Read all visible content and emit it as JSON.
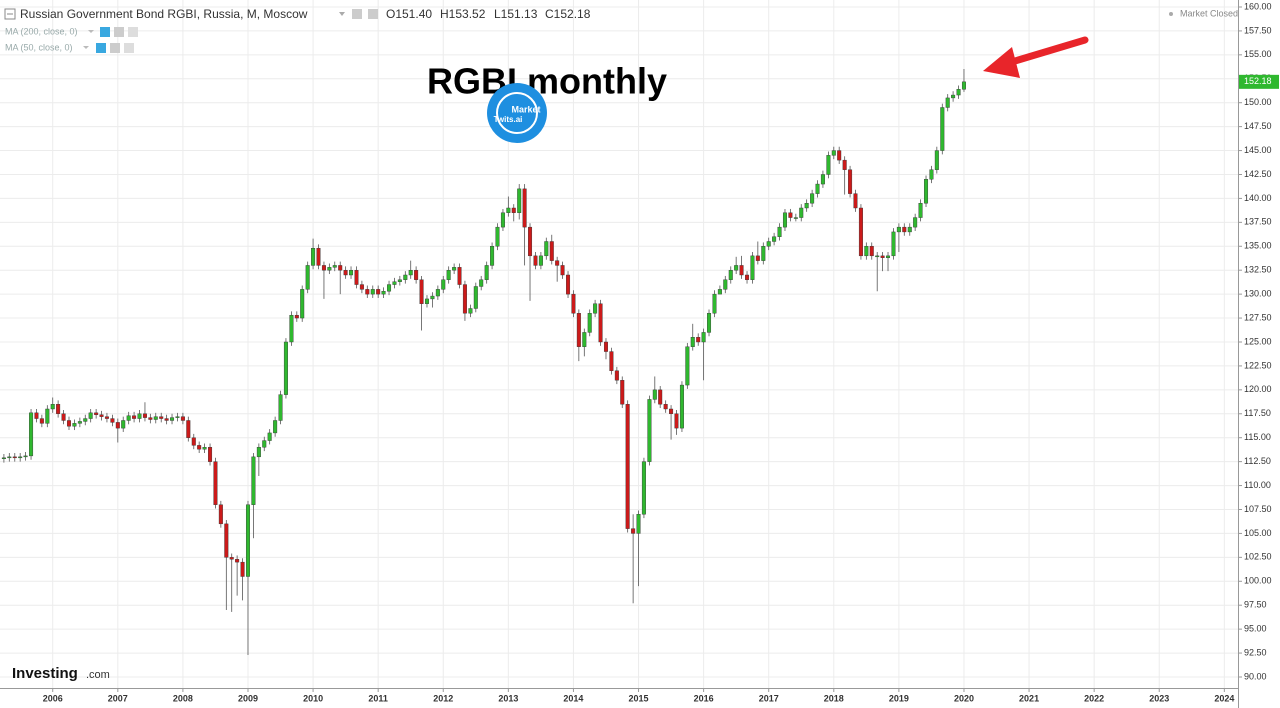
{
  "chart_data": {
    "type": "candlestick",
    "title": "Russian Government Bond RGBI, Russia, M, Moscow",
    "quote": [
      "O151.40",
      "H153.52",
      "L151.13",
      "C152.18"
    ],
    "indicators": [
      "MA (200, close, 0)",
      "MA (50, close, 0)"
    ],
    "status": "Market Closed",
    "annotation": "RGBI monthly",
    "watermark": [
      "Market",
      "Twits.ai"
    ],
    "brand": [
      "Investing",
      ".com"
    ],
    "last_label": "152.18",
    "up_color": "#2fb82f",
    "down_color": "#cc1a1a",
    "grid": true,
    "xlim": [
      2005.19,
      2024.21
    ],
    "ylim": [
      88.85,
      160.73
    ],
    "xticks": [
      2006,
      2007,
      2008,
      2009,
      2010,
      2011,
      2012,
      2013,
      2014,
      2015,
      2016,
      2017,
      2018,
      2019,
      2020,
      2021,
      2022,
      2023,
      2024
    ],
    "yticks": [
      {
        "value": 90,
        "label": "90.00"
      },
      {
        "value": 92.5,
        "label": "92.50"
      },
      {
        "value": 95,
        "label": "95.00"
      },
      {
        "value": 97.5,
        "label": "97.50"
      },
      {
        "value": 100,
        "label": "100.00"
      },
      {
        "value": 102.5,
        "label": "102.50"
      },
      {
        "value": 105,
        "label": "105.00"
      },
      {
        "value": 107.5,
        "label": "107.50"
      },
      {
        "value": 110,
        "label": "110.00"
      },
      {
        "value": 112.5,
        "label": "112.50"
      },
      {
        "value": 115,
        "label": "115.00"
      },
      {
        "value": 117.5,
        "label": "117.50"
      },
      {
        "value": 120,
        "label": "120.00"
      },
      {
        "value": 122.5,
        "label": "122.50"
      },
      {
        "value": 125,
        "label": "125.00"
      },
      {
        "value": 127.5,
        "label": "127.50"
      },
      {
        "value": 130,
        "label": "130.00"
      },
      {
        "value": 132.5,
        "label": "132.50"
      },
      {
        "value": 135,
        "label": "135.00"
      },
      {
        "value": 137.5,
        "label": "137.50"
      },
      {
        "value": 140,
        "label": "140.00"
      },
      {
        "value": 142.5,
        "label": "142.50"
      },
      {
        "value": 145,
        "label": "145.00"
      },
      {
        "value": 147.5,
        "label": "147.50"
      },
      {
        "value": 150,
        "label": "150.00"
      },
      {
        "value": 152.5,
        "label": "152.50"
      },
      {
        "value": 155,
        "label": "155.00"
      },
      {
        "value": 157.5,
        "label": "157.50"
      },
      {
        "value": 160,
        "label": "160.00"
      }
    ],
    "x": [
      2005.25,
      2005.333,
      2005.417,
      2005.5,
      2005.583,
      2005.667,
      2005.75,
      2005.833,
      2005.917,
      2006,
      2006.083,
      2006.167,
      2006.25,
      2006.333,
      2006.417,
      2006.5,
      2006.583,
      2006.667,
      2006.75,
      2006.833,
      2006.917,
      2007,
      2007.083,
      2007.167,
      2007.25,
      2007.333,
      2007.417,
      2007.5,
      2007.583,
      2007.667,
      2007.75,
      2007.833,
      2007.917,
      2008,
      2008.083,
      2008.167,
      2008.25,
      2008.333,
      2008.417,
      2008.5,
      2008.583,
      2008.667,
      2008.75,
      2008.833,
      2008.917,
      2009,
      2009.083,
      2009.167,
      2009.25,
      2009.333,
      2009.417,
      2009.5,
      2009.583,
      2009.667,
      2009.75,
      2009.833,
      2009.917,
      2010,
      2010.083,
      2010.167,
      2010.25,
      2010.333,
      2010.417,
      2010.5,
      2010.583,
      2010.667,
      2010.75,
      2010.833,
      2010.917,
      2011,
      2011.083,
      2011.167,
      2011.25,
      2011.333,
      2011.417,
      2011.5,
      2011.583,
      2011.667,
      2011.75,
      2011.833,
      2011.917,
      2012,
      2012.083,
      2012.167,
      2012.25,
      2012.333,
      2012.417,
      2012.5,
      2012.583,
      2012.667,
      2012.75,
      2012.833,
      2012.917,
      2013,
      2013.083,
      2013.167,
      2013.25,
      2013.333,
      2013.417,
      2013.5,
      2013.583,
      2013.667,
      2013.75,
      2013.833,
      2013.917,
      2014,
      2014.083,
      2014.167,
      2014.25,
      2014.333,
      2014.417,
      2014.5,
      2014.583,
      2014.667,
      2014.75,
      2014.833,
      2014.917,
      2015,
      2015.083,
      2015.167,
      2015.25,
      2015.333,
      2015.417,
      2015.5,
      2015.583,
      2015.667,
      2015.75,
      2015.833,
      2015.917,
      2016,
      2016.083,
      2016.167,
      2016.25,
      2016.333,
      2016.417,
      2016.5,
      2016.583,
      2016.667,
      2016.75,
      2016.833,
      2016.917,
      2017,
      2017.083,
      2017.167,
      2017.25,
      2017.333,
      2017.417,
      2017.5,
      2017.583,
      2017.667,
      2017.75,
      2017.833,
      2017.917,
      2018,
      2018.083,
      2018.167,
      2018.25,
      2018.333,
      2018.417,
      2018.5,
      2018.583,
      2018.667,
      2018.75,
      2018.833,
      2018.917,
      2019,
      2019.083,
      2019.167,
      2019.25,
      2019.333,
      2019.417,
      2019.5,
      2019.583,
      2019.667,
      2019.75,
      2019.833,
      2019.917,
      2020
    ],
    "open": [
      112.8,
      112.9,
      113.0,
      112.9,
      113.0,
      113.1,
      117.6,
      117.0,
      116.5,
      118.0,
      118.5,
      117.5,
      116.8,
      116.2,
      116.5,
      116.7,
      117.0,
      117.6,
      117.4,
      117.2,
      117.0,
      116.6,
      116.0,
      116.8,
      117.3,
      117.0,
      117.5,
      117.1,
      116.9,
      117.2,
      117.0,
      116.8,
      117.1,
      117.2,
      116.8,
      115.0,
      114.2,
      113.8,
      114.0,
      112.5,
      108.0,
      106.0,
      102.5,
      102.3,
      102.0,
      100.5,
      108.0,
      113.0,
      114.0,
      114.7,
      115.5,
      116.8,
      119.5,
      125.0,
      127.8,
      127.5,
      130.5,
      133.0,
      134.8,
      133.0,
      132.5,
      132.8,
      133.0,
      132.5,
      132.0,
      132.5,
      131.0,
      130.5,
      130.0,
      130.5,
      130.0,
      130.3,
      131.0,
      131.3,
      131.5,
      132.0,
      132.5,
      131.5,
      129.0,
      129.5,
      129.8,
      130.5,
      131.5,
      132.5,
      132.8,
      131.0,
      128.0,
      128.5,
      130.8,
      131.5,
      133.0,
      135.0,
      137.0,
      138.5,
      139.0,
      138.5,
      141.0,
      137.0,
      134.0,
      133.0,
      134.0,
      135.5,
      133.5,
      133.0,
      132.0,
      130.0,
      128.0,
      124.5,
      126.0,
      128.0,
      129.0,
      125.0,
      124.0,
      122.0,
      121.0,
      118.5,
      105.5,
      105.0,
      107.0,
      112.5,
      119.0,
      120.0,
      118.5,
      118.0,
      117.5,
      116.0,
      120.5,
      124.5,
      125.5,
      125.0,
      126.0,
      128.0,
      130.0,
      130.5,
      131.5,
      132.5,
      133.0,
      132.0,
      131.5,
      134.0,
      133.5,
      135.0,
      135.5,
      136.0,
      137.0,
      138.5,
      138.0,
      138.0,
      139.0,
      139.5,
      140.5,
      141.5,
      142.5,
      144.5,
      145.0,
      144.0,
      143.0,
      140.5,
      139.0,
      134.0,
      135.0,
      134.0,
      134.0,
      133.8,
      134.0,
      136.5,
      137.0,
      136.5,
      137.0,
      138.0,
      139.5,
      142.0,
      143.0,
      145.0,
      149.5,
      150.5,
      150.8,
      151.4
    ],
    "high": [
      113.3,
      113.4,
      113.4,
      113.4,
      113.5,
      118.0,
      118.0,
      117.4,
      118.4,
      119.2,
      118.9,
      117.9,
      117.2,
      116.9,
      117.1,
      117.4,
      118.0,
      118.0,
      117.8,
      117.6,
      117.4,
      117.0,
      117.2,
      117.7,
      117.7,
      117.9,
      118.7,
      117.5,
      117.6,
      117.6,
      117.4,
      117.5,
      117.6,
      117.6,
      117.2,
      115.4,
      114.6,
      114.4,
      114.4,
      112.9,
      108.4,
      106.4,
      102.9,
      102.7,
      102.4,
      108.4,
      113.4,
      114.4,
      115.1,
      115.9,
      117.2,
      119.9,
      125.4,
      128.2,
      128.2,
      130.9,
      133.4,
      135.8,
      135.2,
      133.4,
      133.2,
      133.4,
      133.4,
      132.9,
      132.9,
      132.9,
      131.4,
      130.9,
      130.9,
      130.9,
      130.7,
      131.4,
      131.7,
      131.9,
      132.4,
      133.5,
      132.9,
      131.9,
      129.9,
      130.2,
      130.9,
      131.9,
      132.9,
      133.2,
      133.2,
      131.4,
      128.9,
      131.2,
      131.9,
      133.4,
      135.4,
      137.4,
      138.9,
      140.2,
      139.4,
      141.5,
      141.5,
      137.4,
      134.4,
      134.4,
      135.9,
      136.2,
      133.9,
      133.4,
      132.4,
      130.4,
      128.4,
      126.4,
      128.4,
      129.4,
      129.4,
      125.4,
      124.4,
      122.4,
      121.4,
      118.9,
      107.0,
      107.4,
      112.9,
      119.4,
      121.4,
      120.4,
      118.9,
      118.4,
      117.9,
      120.9,
      124.9,
      126.9,
      125.9,
      126.4,
      128.4,
      130.4,
      130.9,
      131.9,
      132.9,
      133.9,
      134.0,
      132.4,
      134.4,
      135.5,
      135.4,
      135.9,
      136.4,
      137.4,
      138.9,
      138.9,
      138.4,
      139.4,
      139.9,
      140.9,
      141.9,
      142.9,
      144.9,
      145.4,
      145.4,
      144.4,
      143.4,
      140.9,
      139.4,
      135.4,
      135.4,
      134.4,
      134.4,
      134.4,
      136.9,
      137.4,
      137.4,
      137.4,
      138.4,
      139.9,
      142.4,
      143.4,
      145.4,
      149.9,
      150.9,
      151.2,
      151.8,
      153.52
    ],
    "low": [
      112.4,
      112.5,
      112.5,
      112.5,
      112.6,
      112.7,
      116.6,
      116.1,
      116.1,
      117.6,
      117.1,
      116.4,
      115.8,
      115.8,
      116.1,
      116.3,
      116.6,
      117.0,
      116.8,
      116.6,
      116.2,
      114.5,
      115.6,
      116.4,
      116.6,
      116.6,
      116.7,
      116.5,
      116.5,
      116.6,
      116.4,
      116.4,
      116.7,
      116.4,
      114.6,
      113.8,
      113.4,
      113.4,
      112.1,
      107.6,
      105.6,
      97.0,
      96.8,
      98.5,
      98.0,
      92.3,
      104.5,
      111.0,
      113.6,
      114.3,
      115.1,
      116.4,
      119.1,
      124.6,
      127.1,
      127.1,
      130.1,
      132.6,
      132.6,
      129.5,
      132.1,
      132.4,
      130.0,
      131.6,
      131.6,
      130.6,
      130.1,
      129.6,
      129.6,
      129.6,
      129.6,
      129.9,
      130.6,
      130.9,
      131.1,
      131.6,
      131.1,
      126.2,
      128.6,
      128.6,
      129.4,
      130.1,
      131.1,
      132.1,
      130.6,
      127.2,
      127.6,
      128.1,
      130.4,
      131.1,
      132.6,
      134.6,
      136.6,
      138.1,
      137.6,
      137.8,
      133.0,
      129.3,
      132.6,
      132.6,
      133.6,
      133.1,
      131.3,
      131.6,
      129.6,
      127.6,
      123.0,
      123.5,
      125.6,
      127.6,
      124.6,
      123.2,
      121.6,
      120.6,
      118.1,
      105.1,
      97.7,
      99.5,
      106.6,
      112.1,
      118.6,
      118.1,
      117.6,
      114.8,
      115.3,
      115.6,
      120.1,
      124.1,
      124.6,
      121.0,
      125.6,
      127.6,
      130.1,
      130.1,
      131.1,
      132.1,
      131.6,
      131.1,
      131.1,
      133.1,
      133.1,
      134.6,
      135.1,
      135.6,
      136.6,
      137.6,
      137.6,
      137.6,
      138.6,
      139.1,
      140.1,
      141.1,
      142.1,
      144.1,
      143.6,
      140.4,
      140.1,
      138.6,
      133.6,
      133.6,
      133.6,
      130.3,
      132.4,
      132.4,
      133.6,
      134.4,
      136.1,
      136.1,
      136.6,
      137.6,
      139.1,
      141.6,
      142.6,
      144.6,
      149.1,
      150.1,
      150.4,
      151.13
    ],
    "close": [
      112.9,
      113.0,
      112.9,
      113.0,
      113.1,
      117.6,
      117.0,
      116.5,
      118.0,
      118.5,
      117.5,
      116.8,
      116.2,
      116.5,
      116.7,
      117.0,
      117.6,
      117.4,
      117.2,
      117.0,
      116.6,
      116.0,
      116.8,
      117.3,
      117.0,
      117.5,
      117.1,
      116.9,
      117.2,
      117.0,
      116.8,
      117.1,
      117.2,
      116.8,
      115.0,
      114.2,
      113.8,
      114.0,
      112.5,
      108.0,
      106.0,
      102.5,
      102.3,
      102.0,
      100.5,
      108.0,
      113.0,
      114.0,
      114.7,
      115.5,
      116.8,
      119.5,
      125.0,
      127.8,
      127.5,
      130.5,
      133.0,
      134.8,
      133.0,
      132.5,
      132.8,
      133.0,
      132.5,
      132.0,
      132.5,
      131.0,
      130.5,
      130.0,
      130.5,
      130.0,
      130.3,
      131.0,
      131.3,
      131.5,
      132.0,
      132.5,
      131.5,
      129.0,
      129.5,
      129.8,
      130.5,
      131.5,
      132.5,
      132.8,
      131.0,
      128.0,
      128.5,
      130.8,
      131.5,
      133.0,
      135.0,
      137.0,
      138.5,
      139.0,
      138.5,
      141.0,
      137.0,
      134.0,
      133.0,
      134.0,
      135.5,
      133.5,
      133.0,
      132.0,
      130.0,
      128.0,
      124.5,
      126.0,
      128.0,
      129.0,
      125.0,
      124.0,
      122.0,
      121.0,
      118.5,
      105.5,
      105.0,
      107.0,
      112.5,
      119.0,
      120.0,
      118.5,
      118.0,
      117.5,
      116.0,
      120.5,
      124.5,
      125.5,
      125.0,
      126.0,
      128.0,
      130.0,
      130.5,
      131.5,
      132.5,
      133.0,
      132.0,
      131.5,
      134.0,
      133.5,
      135.0,
      135.5,
      136.0,
      137.0,
      138.5,
      138.0,
      138.0,
      139.0,
      139.5,
      140.5,
      141.5,
      142.5,
      144.5,
      145.0,
      144.0,
      143.0,
      140.5,
      139.0,
      134.0,
      135.0,
      134.0,
      134.0,
      133.8,
      134.0,
      136.5,
      137.0,
      136.5,
      137.0,
      138.0,
      139.5,
      142.0,
      143.0,
      145.0,
      149.5,
      150.5,
      150.8,
      151.4,
      152.18
    ]
  }
}
